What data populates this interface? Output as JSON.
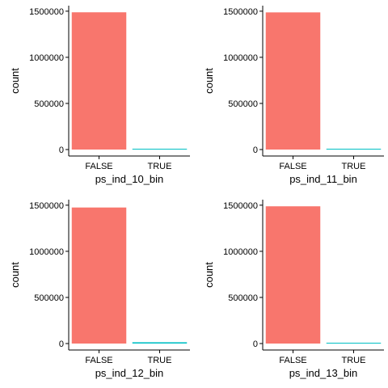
{
  "colors": {
    "false_bar": "#F8766D",
    "true_bar": "#00BFC4",
    "axis": "#000000"
  },
  "chart_data": [
    {
      "type": "bar",
      "xlabel": "ps_ind_10_bin",
      "ylabel": "count",
      "categories": [
        "FALSE",
        "TRUE"
      ],
      "values": [
        1488000,
        550
      ],
      "ylim": [
        0,
        1560000
      ],
      "yticks": [
        0,
        500000,
        1000000,
        1500000
      ],
      "ytick_labels": [
        "0",
        "500000",
        "1000000",
        "1500000"
      ],
      "grid": false,
      "legend": "none"
    },
    {
      "type": "bar",
      "xlabel": "ps_ind_11_bin",
      "ylabel": "count",
      "categories": [
        "FALSE",
        "TRUE"
      ],
      "values": [
        1487000,
        2500
      ],
      "ylim": [
        0,
        1560000
      ],
      "yticks": [
        0,
        500000,
        1000000,
        1500000
      ],
      "ytick_labels": [
        "0",
        "500000",
        "1000000",
        "1500000"
      ],
      "grid": false,
      "legend": "none"
    },
    {
      "type": "bar",
      "xlabel": "ps_ind_12_bin",
      "ylabel": "count",
      "categories": [
        "FALSE",
        "TRUE"
      ],
      "values": [
        1475000,
        14000
      ],
      "ylim": [
        0,
        1560000
      ],
      "yticks": [
        0,
        500000,
        1000000,
        1500000
      ],
      "ytick_labels": [
        "0",
        "500000",
        "1000000",
        "1500000"
      ],
      "grid": false,
      "legend": "none"
    },
    {
      "type": "bar",
      "xlabel": "ps_ind_13_bin",
      "ylabel": "count",
      "categories": [
        "FALSE",
        "TRUE"
      ],
      "values": [
        1488000,
        1300
      ],
      "ylim": [
        0,
        1560000
      ],
      "yticks": [
        0,
        500000,
        1000000,
        1500000
      ],
      "ytick_labels": [
        "0",
        "500000",
        "1000000",
        "1500000"
      ],
      "grid": false,
      "legend": "none"
    }
  ]
}
